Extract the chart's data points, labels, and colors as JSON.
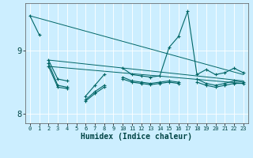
{
  "xlabel": "Humidex (Indice chaleur)",
  "bg_color": "#cceeff",
  "grid_color": "#ffffff",
  "line_color": "#006666",
  "x": [
    0,
    1,
    2,
    3,
    4,
    5,
    6,
    7,
    8,
    9,
    10,
    11,
    12,
    13,
    14,
    15,
    16,
    17,
    18,
    19,
    20,
    21,
    22,
    23
  ],
  "volatile_y": [
    9.55,
    9.25,
    null,
    null,
    null,
    null,
    null,
    null,
    null,
    null,
    null,
    null,
    null,
    null,
    null,
    null,
    null,
    null,
    null,
    null,
    null,
    null,
    null,
    null
  ],
  "main_y": [
    null,
    null,
    8.85,
    8.55,
    8.52,
    null,
    8.28,
    8.45,
    8.62,
    null,
    8.72,
    8.62,
    8.6,
    8.58,
    8.6,
    9.05,
    9.22,
    9.62,
    8.62,
    8.7,
    8.62,
    8.65,
    8.72,
    8.65
  ],
  "mid_y": [
    null,
    null,
    8.8,
    8.45,
    8.42,
    null,
    8.22,
    8.35,
    8.45,
    null,
    8.58,
    8.52,
    8.5,
    8.48,
    8.5,
    8.52,
    8.5,
    null,
    8.55,
    8.48,
    8.45,
    8.48,
    8.52,
    8.5
  ],
  "flat_y": [
    null,
    null,
    8.75,
    8.42,
    8.4,
    null,
    8.2,
    8.32,
    8.42,
    null,
    8.55,
    8.5,
    8.48,
    8.46,
    8.48,
    8.5,
    8.48,
    null,
    8.5,
    8.45,
    8.42,
    8.45,
    8.48,
    8.48
  ],
  "trend1_x": [
    0,
    23
  ],
  "trend1_y": [
    9.55,
    8.62
  ],
  "trend2_x": [
    2,
    23
  ],
  "trend2_y": [
    8.85,
    8.52
  ],
  "trend3_x": [
    2,
    23
  ],
  "trend3_y": [
    8.75,
    8.48
  ],
  "ylim": [
    7.85,
    9.75
  ],
  "yticks": [
    8,
    9
  ],
  "xlim": [
    -0.5,
    23.5
  ]
}
